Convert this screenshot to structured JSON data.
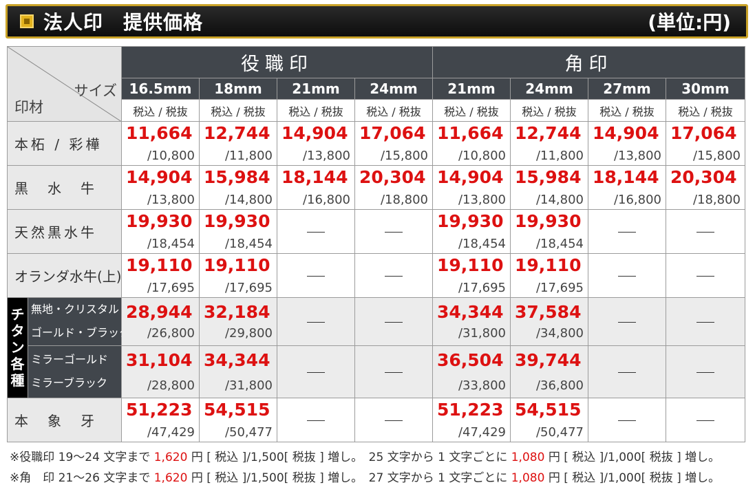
{
  "header": {
    "title": "法人印　提供価格",
    "unit": "(単位:円)"
  },
  "table": {
    "corner_size": "サイズ",
    "corner_material": "印材",
    "categories": [
      {
        "label": "役職印"
      },
      {
        "label": "角印"
      }
    ],
    "sizes": [
      "16.5mm",
      "18mm",
      "21mm",
      "24mm",
      "21mm",
      "24mm",
      "27mm",
      "30mm"
    ],
    "tax_label": "税込 / 税抜",
    "titan_label": "チタン各種",
    "rows": [
      {
        "label": "本柘 / 彩樺",
        "cells": [
          {
            "inc": "11,664",
            "exc": "/10,800"
          },
          {
            "inc": "12,744",
            "exc": "/11,800"
          },
          {
            "inc": "14,904",
            "exc": "/13,800"
          },
          {
            "inc": "17,064",
            "exc": "/15,800"
          },
          {
            "inc": "11,664",
            "exc": "/10,800"
          },
          {
            "inc": "12,744",
            "exc": "/11,800"
          },
          {
            "inc": "14,904",
            "exc": "/13,800"
          },
          {
            "inc": "17,064",
            "exc": "/15,800"
          }
        ]
      },
      {
        "label": "黒　水　牛",
        "cells": [
          {
            "inc": "14,904",
            "exc": "/13,800"
          },
          {
            "inc": "15,984",
            "exc": "/14,800"
          },
          {
            "inc": "18,144",
            "exc": "/16,800"
          },
          {
            "inc": "20,304",
            "exc": "/18,800"
          },
          {
            "inc": "14,904",
            "exc": "/13,800"
          },
          {
            "inc": "15,984",
            "exc": "/14,800"
          },
          {
            "inc": "18,144",
            "exc": "/16,800"
          },
          {
            "inc": "20,304",
            "exc": "/18,800"
          }
        ]
      },
      {
        "label": "天然黒水牛",
        "cells": [
          {
            "inc": "19,930",
            "exc": "/18,454"
          },
          {
            "inc": "19,930",
            "exc": "/18,454"
          },
          null,
          null,
          {
            "inc": "19,930",
            "exc": "/18,454"
          },
          {
            "inc": "19,930",
            "exc": "/18,454"
          },
          null,
          null
        ]
      },
      {
        "label": "オランダ水牛(上)",
        "cells": [
          {
            "inc": "19,110",
            "exc": "/17,695"
          },
          {
            "inc": "19,110",
            "exc": "/17,695"
          },
          null,
          null,
          {
            "inc": "19,110",
            "exc": "/17,695"
          },
          {
            "inc": "19,110",
            "exc": "/17,695"
          },
          null,
          null
        ]
      },
      {
        "label": "無地・クリスタル",
        "label2": "ゴールド・ブラック",
        "cells": [
          {
            "inc": "28,944",
            "exc": "/26,800"
          },
          {
            "inc": "32,184",
            "exc": "/29,800"
          },
          null,
          null,
          {
            "inc": "34,344",
            "exc": "/31,800"
          },
          {
            "inc": "37,584",
            "exc": "/34,800"
          },
          null,
          null
        ]
      },
      {
        "label": "ミラーゴールド",
        "label2": "ミラーブラック",
        "cells": [
          {
            "inc": "31,104",
            "exc": "/28,800"
          },
          {
            "inc": "34,344",
            "exc": "/31,800"
          },
          null,
          null,
          {
            "inc": "36,504",
            "exc": "/33,800"
          },
          {
            "inc": "39,744",
            "exc": "/36,800"
          },
          null,
          null
        ]
      },
      {
        "label": "本　象　牙",
        "cells": [
          {
            "inc": "51,223",
            "exc": "/47,429"
          },
          {
            "inc": "54,515",
            "exc": "/50,477"
          },
          null,
          null,
          {
            "inc": "51,223",
            "exc": "/47,429"
          },
          {
            "inc": "54,515",
            "exc": "/50,477"
          },
          null,
          null
        ]
      }
    ],
    "dash": "—"
  },
  "notes": [
    {
      "a": "※役職印 19～24 文字まで",
      "p1": "1,620",
      "b": "円 [ 税込 ]/1,500[ 税抜 ] 増し。　25 文字から 1 文字ごとに",
      "p2": "1,080",
      "c": "円 [ 税込 ]/1,000[ 税抜 ] 増し。"
    },
    {
      "a": "※角　印 21～26 文字まで",
      "p1": "1,620",
      "b": "円 [ 税込 ]/1,500[ 税抜 ] 増し。　27 文字から 1 文字ごとに",
      "p2": "1,080",
      "c": "円 [ 税込 ]/1,000[ 税抜 ] 増し。"
    }
  ],
  "colors": {
    "accent_red": "#dd1111",
    "header_dark": "#41464c",
    "gold_border": "#c9a227"
  }
}
